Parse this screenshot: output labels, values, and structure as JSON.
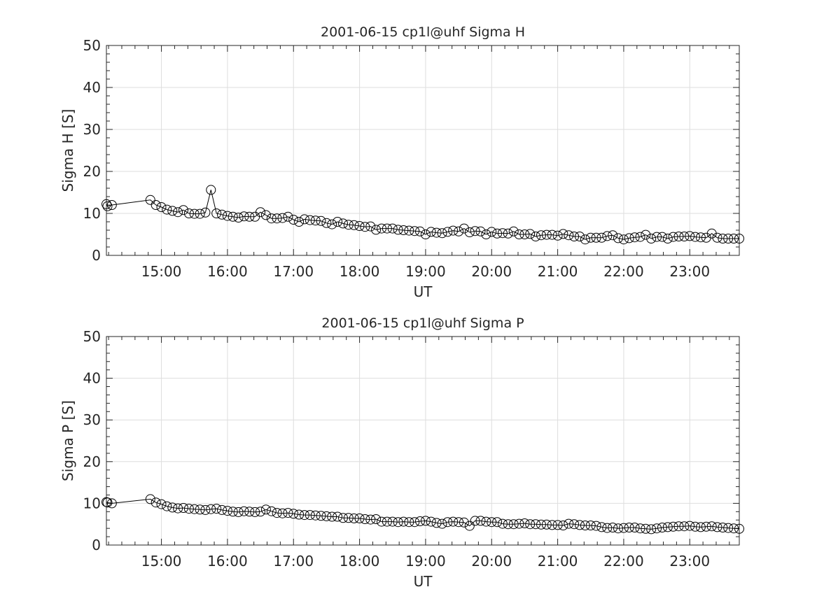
{
  "chart_data": [
    {
      "type": "line",
      "title": "2001-06-15  cp1l@uhf Sigma H",
      "xlabel": "UT",
      "ylabel": "Sigma H [S]",
      "ylim": [
        0,
        50
      ],
      "xlim_hours": [
        14.167,
        23.75
      ],
      "yticks": [
        "0",
        "10",
        "20",
        "30",
        "40",
        "50"
      ],
      "xticks": [
        "15:00",
        "16:00",
        "17:00",
        "18:00",
        "19:00",
        "20:00",
        "21:00",
        "22:00",
        "23:00"
      ],
      "grid": true,
      "marker": "open-circle",
      "early_points": {
        "x_hours": [
          14.167,
          14.183,
          14.25
        ],
        "y": [
          12.2,
          11.7,
          12.0
        ]
      },
      "x_start_hours": 14.833,
      "x_step_minutes": 5,
      "values": [
        13.2,
        12.0,
        11.5,
        10.9,
        10.6,
        10.3,
        10.8,
        10.0,
        9.9,
        9.9,
        10.2,
        15.6,
        10.0,
        9.7,
        9.4,
        9.2,
        9.0,
        9.3,
        9.2,
        9.2,
        10.3,
        9.6,
        8.8,
        8.8,
        8.9,
        9.2,
        8.5,
        8.0,
        8.6,
        8.4,
        8.3,
        8.2,
        7.7,
        7.4,
        8.0,
        7.6,
        7.3,
        7.2,
        7.0,
        6.8,
        6.9,
        6.1,
        6.4,
        6.4,
        6.4,
        6.1,
        6.0,
        5.9,
        5.8,
        5.7,
        5.0,
        5.6,
        5.4,
        5.3,
        5.6,
        5.9,
        5.7,
        6.4,
        5.5,
        5.8,
        5.7,
        5.0,
        5.6,
        5.2,
        5.3,
        5.2,
        5.7,
        5.0,
        5.0,
        5.1,
        4.5,
        4.8,
        4.9,
        4.9,
        4.7,
        5.1,
        4.8,
        4.5,
        4.5,
        3.8,
        4.2,
        4.2,
        4.2,
        4.6,
        4.8,
        4.1,
        3.8,
        4.1,
        4.3,
        4.4,
        4.9,
        4.0,
        4.4,
        4.4,
        4.0,
        4.4,
        4.5,
        4.5,
        4.6,
        4.4,
        4.3,
        4.2,
        5.2,
        4.2,
        4.0,
        4.0,
        4.0,
        4.0
      ]
    },
    {
      "type": "line",
      "title": "2001-06-15  cp1l@uhf Sigma P",
      "xlabel": "UT",
      "ylabel": "Sigma P [S]",
      "ylim": [
        0,
        50
      ],
      "xlim_hours": [
        14.167,
        23.75
      ],
      "yticks": [
        "0",
        "10",
        "20",
        "30",
        "40",
        "50"
      ],
      "xticks": [
        "15:00",
        "16:00",
        "17:00",
        "18:00",
        "19:00",
        "20:00",
        "21:00",
        "22:00",
        "23:00"
      ],
      "grid": true,
      "marker": "open-circle",
      "early_points": {
        "x_hours": [
          14.167,
          14.183,
          14.25
        ],
        "y": [
          10.3,
          10.2,
          10.0
        ]
      },
      "x_start_hours": 14.833,
      "x_step_minutes": 5,
      "values": [
        11.0,
        10.2,
        9.8,
        9.3,
        9.0,
        8.8,
        8.9,
        8.7,
        8.6,
        8.5,
        8.4,
        8.6,
        8.7,
        8.4,
        8.2,
        8.0,
        7.9,
        8.1,
        8.0,
        7.9,
        8.0,
        8.5,
        8.1,
        7.7,
        7.6,
        7.7,
        7.5,
        7.3,
        7.2,
        7.2,
        7.1,
        7.0,
        6.9,
        6.8,
        6.8,
        6.5,
        6.5,
        6.4,
        6.4,
        6.2,
        6.1,
        6.2,
        5.6,
        5.6,
        5.6,
        5.5,
        5.6,
        5.5,
        5.5,
        5.7,
        5.8,
        5.6,
        5.3,
        5.1,
        5.5,
        5.6,
        5.5,
        5.4,
        4.6,
        5.8,
        5.8,
        5.6,
        5.5,
        5.5,
        5.1,
        5.0,
        5.0,
        5.1,
        5.2,
        5.0,
        5.0,
        4.9,
        4.9,
        4.8,
        4.8,
        4.7,
        5.1,
        5.0,
        4.8,
        4.7,
        4.7,
        4.6,
        4.3,
        4.1,
        4.2,
        4.0,
        4.1,
        4.2,
        4.2,
        4.0,
        3.9,
        3.8,
        4.0,
        4.2,
        4.3,
        4.4,
        4.5,
        4.5,
        4.6,
        4.4,
        4.3,
        4.4,
        4.5,
        4.3,
        4.2,
        4.1,
        4.0,
        3.9
      ]
    }
  ],
  "colors": {
    "axis": "#262626",
    "grid": "#dedede",
    "line": "#000000"
  }
}
